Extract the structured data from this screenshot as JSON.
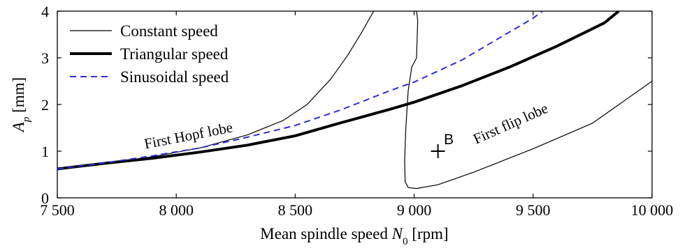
{
  "chart_data": {
    "type": "line",
    "xlabel_main": "Mean spindle speed ",
    "xlabel_var": "N",
    "xlabel_sub": "0",
    "xlabel_unit": " [rpm]",
    "ylabel_var": "A",
    "ylabel_sub": "p",
    "ylabel_unit": " [mm]",
    "xlim": [
      7500,
      10000
    ],
    "ylim": [
      0,
      4
    ],
    "x_ticks": [
      7500,
      8000,
      8500,
      9000,
      9500,
      10000
    ],
    "x_tick_labels": [
      "7 500",
      "8 000",
      "8 500",
      "9 000",
      "9 500",
      "10 000"
    ],
    "y_ticks": [
      0,
      1,
      2,
      3,
      4
    ],
    "y_tick_labels": [
      "0",
      "1",
      "2",
      "3",
      "4"
    ],
    "legend_position": "top-left",
    "series": [
      {
        "name": "Constant speed",
        "color": "#000000",
        "style": "thin-solid",
        "segments": [
          [
            [
              7500,
              0.62
            ],
            [
              7700,
              0.73
            ],
            [
              7900,
              0.88
            ],
            [
              8100,
              1.07
            ],
            [
              8300,
              1.35
            ],
            [
              8450,
              1.66
            ],
            [
              8550,
              2.0
            ],
            [
              8650,
              2.55
            ],
            [
              8720,
              3.05
            ],
            [
              8780,
              3.55
            ],
            [
              8830,
              4.0
            ]
          ],
          [
            [
              9010,
              4.0
            ],
            [
              9015,
              3.8
            ],
            [
              9010,
              3.0
            ],
            [
              8990,
              2.8
            ],
            [
              8975,
              2.3
            ],
            [
              8965,
              1.5
            ],
            [
              8960,
              0.8
            ],
            [
              8962,
              0.35
            ],
            [
              8975,
              0.22
            ],
            [
              9010,
              0.2
            ],
            [
              9100,
              0.28
            ],
            [
              9250,
              0.55
            ],
            [
              9500,
              1.05
            ],
            [
              9750,
              1.6
            ],
            [
              10000,
              2.5
            ]
          ]
        ]
      },
      {
        "name": "Triangular speed",
        "color": "#000000",
        "style": "thick-solid",
        "points": [
          [
            7500,
            0.62
          ],
          [
            7700,
            0.74
          ],
          [
            7900,
            0.85
          ],
          [
            8100,
            0.98
          ],
          [
            8300,
            1.13
          ],
          [
            8500,
            1.33
          ],
          [
            8700,
            1.62
          ],
          [
            8900,
            1.9
          ],
          [
            9000,
            2.05
          ],
          [
            9200,
            2.4
          ],
          [
            9400,
            2.8
          ],
          [
            9600,
            3.25
          ],
          [
            9800,
            3.75
          ],
          [
            9860,
            4.0
          ]
        ]
      },
      {
        "name": "Sinusoidal speed",
        "color": "#2d2de0",
        "style": "dashed",
        "points": [
          [
            7500,
            0.62
          ],
          [
            7700,
            0.75
          ],
          [
            7900,
            0.9
          ],
          [
            8100,
            1.07
          ],
          [
            8300,
            1.3
          ],
          [
            8500,
            1.55
          ],
          [
            8700,
            1.9
          ],
          [
            8900,
            2.3
          ],
          [
            9000,
            2.48
          ],
          [
            9200,
            2.95
          ],
          [
            9350,
            3.4
          ],
          [
            9500,
            3.85
          ],
          [
            9540,
            4.0
          ]
        ]
      }
    ],
    "annotations": [
      {
        "text": "First Hopf lobe",
        "x": 7870,
        "y": 1.05,
        "angle": -11
      },
      {
        "text": "First flip lobe",
        "x": 9260,
        "y": 1.15,
        "angle": -24
      },
      {
        "text": "B",
        "x": 9125,
        "y": 1.15
      }
    ],
    "marker": {
      "x": 9100,
      "y": 1.0,
      "shape": "plus"
    }
  }
}
